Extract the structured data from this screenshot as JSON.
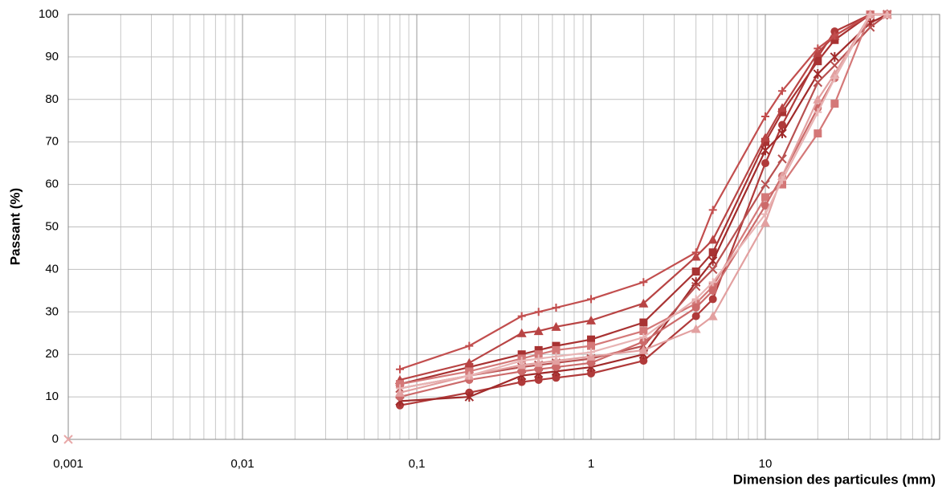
{
  "chart_data": {
    "type": "line",
    "x_label": "Dimension des particules (mm)",
    "y_label": "Passant (%)",
    "xscale": "log",
    "xlim": [
      0.001,
      100
    ],
    "ylim": [
      0,
      100
    ],
    "xticks": [
      {
        "value": 0.001,
        "label": "0,001"
      },
      {
        "value": 0.01,
        "label": "0,01"
      },
      {
        "value": 0.1,
        "label": "0,1"
      },
      1,
      10
    ],
    "xminorticks": [
      0.002,
      0.003,
      0.004,
      0.005,
      0.006,
      0.007,
      0.008,
      0.009,
      0.02,
      0.03,
      0.04,
      0.05,
      0.06,
      0.07,
      0.08,
      0.09,
      0.2,
      0.3,
      0.4,
      0.5,
      0.6,
      0.7,
      0.8,
      0.9,
      2,
      3,
      4,
      5,
      6,
      7,
      8,
      9,
      20,
      30,
      40,
      50,
      60,
      70,
      80,
      90
    ],
    "yticks": [
      0,
      10,
      20,
      30,
      40,
      50,
      60,
      70,
      80,
      90,
      100
    ],
    "grid": true,
    "x": [
      0.08,
      0.2,
      0.4,
      0.5,
      0.63,
      1,
      2,
      4,
      5,
      10,
      12.5,
      20,
      25,
      40,
      50
    ],
    "series": [
      {
        "color": "#b03a3a",
        "marker": "circle",
        "values": [
          8,
          11,
          13.5,
          14,
          14.5,
          15.5,
          18.5,
          29,
          33,
          65,
          74,
          90,
          96,
          100,
          100
        ]
      },
      {
        "color": "#a83232",
        "marker": "square",
        "values": [
          13,
          17,
          20,
          21,
          22,
          23.5,
          27.5,
          39.5,
          44,
          70,
          77,
          89,
          94,
          100,
          100
        ]
      },
      {
        "color": "#b84444",
        "marker": "triangle",
        "values": [
          14,
          18,
          25,
          25.5,
          26.5,
          28,
          32,
          43,
          47,
          71,
          78,
          91,
          95,
          100,
          100
        ]
      },
      {
        "color": "#c24e4e",
        "marker": "plus",
        "values": [
          16.5,
          22,
          29,
          30,
          31,
          33,
          37,
          44,
          54,
          76,
          82,
          92,
          95,
          100,
          100
        ]
      },
      {
        "color": "#a02a2a",
        "marker": "star",
        "values": [
          9,
          10,
          15,
          15.5,
          16,
          17,
          20,
          37,
          42,
          68,
          72,
          86,
          90,
          98,
          100
        ]
      },
      {
        "color": "#b85050",
        "marker": "cross",
        "values": [
          12,
          15,
          17,
          17.5,
          18,
          19,
          22,
          36,
          40,
          60,
          66,
          84,
          88,
          97,
          100
        ]
      },
      {
        "color": "#d47878",
        "marker": "square",
        "values": [
          13,
          16,
          19,
          20,
          21,
          22,
          25.5,
          32,
          36,
          57,
          60,
          72,
          79,
          100,
          100
        ]
      },
      {
        "color": "#cc6a6a",
        "marker": "circle",
        "values": [
          10,
          14,
          16,
          16.5,
          17,
          18,
          23,
          31,
          35,
          55,
          62,
          78,
          85,
          100,
          100
        ]
      },
      {
        "color": "#e2a0a0",
        "marker": "triangle",
        "values": [
          11,
          15,
          17.5,
          18,
          18.5,
          19.5,
          21,
          26,
          29,
          51,
          62,
          80,
          86,
          100,
          100
        ]
      },
      {
        "color": "#e8b4b4",
        "marker": "plus",
        "values": [
          12,
          15,
          18.5,
          19,
          19.5,
          20.5,
          24,
          33,
          37,
          53,
          61,
          77,
          85,
          100,
          100
        ]
      },
      {
        "color": "#e8a8a8",
        "marker": "cross",
        "x": [
          0.001
        ],
        "values": [
          0
        ]
      }
    ]
  }
}
